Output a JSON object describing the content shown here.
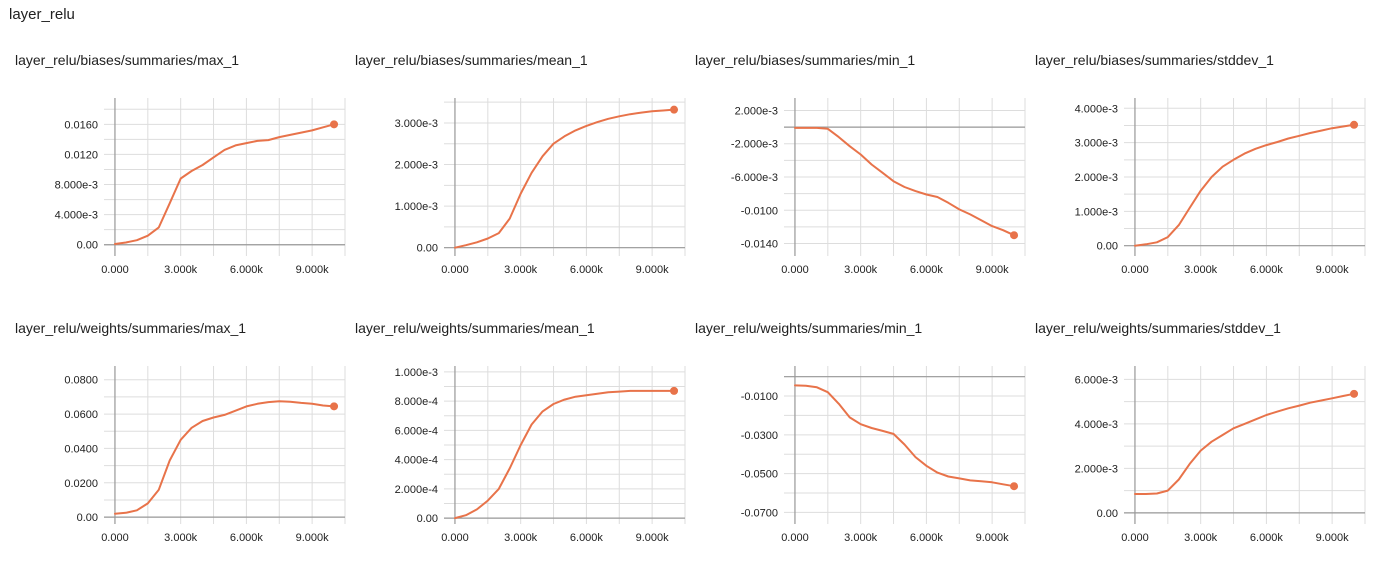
{
  "group": {
    "title": "layer_relu"
  },
  "colors": {
    "line": "#e8734a",
    "grid": "#dddddd",
    "axis": "#999999"
  },
  "chart_data": [
    {
      "type": "line",
      "title": "layer_relu/biases/summaries/max_1",
      "xlim": [
        -500,
        10500
      ],
      "ylim": [
        -0.0015,
        0.0195
      ],
      "xticks": [
        0,
        3000,
        6000,
        9000
      ],
      "xtick_labels": [
        "0.000",
        "3.000k",
        "6.000k",
        "9.000k"
      ],
      "yticks": [
        0,
        0.004,
        0.008,
        0.012,
        0.016
      ],
      "ytick_labels": [
        "0.00",
        "4.000e-3",
        "8.000e-3",
        "0.0120",
        "0.0160"
      ],
      "series": [
        {
          "x": [
            0,
            500,
            1000,
            1500,
            2000,
            2500,
            3000,
            3500,
            4000,
            4500,
            5000,
            5500,
            6000,
            6500,
            7000,
            7500,
            8000,
            8500,
            9000,
            9500,
            10000
          ],
          "y": [
            0.0001,
            0.0003,
            0.0006,
            0.0012,
            0.0023,
            0.0055,
            0.0088,
            0.0098,
            0.0106,
            0.0116,
            0.0126,
            0.0132,
            0.0135,
            0.0138,
            0.0139,
            0.0143,
            0.0146,
            0.0149,
            0.0152,
            0.0156,
            0.016
          ]
        }
      ]
    },
    {
      "type": "line",
      "title": "layer_relu/biases/summaries/mean_1",
      "xlim": [
        -500,
        10500
      ],
      "ylim": [
        -0.0002,
        0.0036
      ],
      "xticks": [
        0,
        3000,
        6000,
        9000
      ],
      "xtick_labels": [
        "0.000",
        "3.000k",
        "6.000k",
        "9.000k"
      ],
      "yticks": [
        0,
        0.001,
        0.002,
        0.003
      ],
      "ytick_labels": [
        "0.00",
        "1.000e-3",
        "2.000e-3",
        "3.000e-3"
      ],
      "series": [
        {
          "x": [
            0,
            500,
            1000,
            1500,
            2000,
            2500,
            3000,
            3500,
            4000,
            4500,
            5000,
            5500,
            6000,
            6500,
            7000,
            7500,
            8000,
            8500,
            9000,
            9500,
            10000
          ],
          "y": [
            0.0,
            6e-05,
            0.00013,
            0.00022,
            0.00035,
            0.0007,
            0.0013,
            0.0018,
            0.0022,
            0.0025,
            0.00268,
            0.00282,
            0.00293,
            0.00302,
            0.0031,
            0.00316,
            0.00321,
            0.00325,
            0.00328,
            0.0033,
            0.00332
          ]
        }
      ]
    },
    {
      "type": "line",
      "title": "layer_relu/biases/summaries/min_1",
      "xlim": [
        -500,
        10500
      ],
      "ylim": [
        -0.0155,
        0.0035
      ],
      "xticks": [
        0,
        3000,
        6000,
        9000
      ],
      "xtick_labels": [
        "0.000",
        "3.000k",
        "6.000k",
        "9.000k"
      ],
      "yticks": [
        -0.014,
        -0.01,
        -0.006,
        -0.002,
        0.002
      ],
      "ytick_labels": [
        "-0.0140",
        "-0.0100",
        "-6.000e-3",
        "-2.000e-3",
        "2.000e-3"
      ],
      "series": [
        {
          "x": [
            0,
            500,
            1000,
            1500,
            2000,
            2500,
            3000,
            3500,
            4000,
            4500,
            5000,
            5500,
            6000,
            6500,
            7000,
            7500,
            8000,
            8500,
            9000,
            9500,
            10000
          ],
          "y": [
            -0.0001,
            -0.0001,
            -0.0001,
            -0.0002,
            -0.0012,
            -0.0023,
            -0.0033,
            -0.0045,
            -0.0055,
            -0.0065,
            -0.0072,
            -0.0077,
            -0.0081,
            -0.0084,
            -0.0091,
            -0.0099,
            -0.0105,
            -0.0112,
            -0.0119,
            -0.0124,
            -0.013
          ]
        }
      ]
    },
    {
      "type": "line",
      "title": "layer_relu/biases/summaries/stddev_1",
      "xlim": [
        -500,
        10500
      ],
      "ylim": [
        -0.0003,
        0.0043
      ],
      "xticks": [
        0,
        3000,
        6000,
        9000
      ],
      "xtick_labels": [
        "0.000",
        "3.000k",
        "6.000k",
        "9.000k"
      ],
      "yticks": [
        0,
        0.001,
        0.002,
        0.003,
        0.004
      ],
      "ytick_labels": [
        "0.00",
        "1.000e-3",
        "2.000e-3",
        "3.000e-3",
        "4.000e-3"
      ],
      "series": [
        {
          "x": [
            0,
            500,
            1000,
            1500,
            2000,
            2500,
            3000,
            3500,
            4000,
            4500,
            5000,
            5500,
            6000,
            6500,
            7000,
            7500,
            8000,
            8500,
            9000,
            9500,
            10000
          ],
          "y": [
            0.0,
            4e-05,
            0.0001,
            0.00025,
            0.0006,
            0.0011,
            0.0016,
            0.002,
            0.0023,
            0.0025,
            0.00268,
            0.00282,
            0.00293,
            0.00302,
            0.00312,
            0.0032,
            0.00328,
            0.00335,
            0.00342,
            0.00347,
            0.00352
          ]
        }
      ]
    },
    {
      "type": "line",
      "title": "layer_relu/weights/summaries/max_1",
      "xlim": [
        -500,
        10500
      ],
      "ylim": [
        -0.004,
        0.088
      ],
      "xticks": [
        0,
        3000,
        6000,
        9000
      ],
      "xtick_labels": [
        "0.000",
        "3.000k",
        "6.000k",
        "9.000k"
      ],
      "yticks": [
        0,
        0.02,
        0.04,
        0.06,
        0.08
      ],
      "ytick_labels": [
        "0.00",
        "0.0200",
        "0.0400",
        "0.0600",
        "0.0800"
      ],
      "series": [
        {
          "x": [
            0,
            500,
            1000,
            1500,
            2000,
            2500,
            3000,
            3500,
            4000,
            4500,
            5000,
            5500,
            6000,
            6500,
            7000,
            7500,
            8000,
            8500,
            9000,
            9500,
            10000
          ],
          "y": [
            0.002,
            0.0025,
            0.004,
            0.008,
            0.016,
            0.033,
            0.045,
            0.052,
            0.056,
            0.058,
            0.0595,
            0.062,
            0.0645,
            0.066,
            0.067,
            0.0675,
            0.0672,
            0.0665,
            0.066,
            0.065,
            0.0645
          ]
        }
      ]
    },
    {
      "type": "line",
      "title": "layer_relu/weights/summaries/mean_1",
      "xlim": [
        -500,
        10500
      ],
      "ylim": [
        -4e-05,
        0.00104
      ],
      "xticks": [
        0,
        3000,
        6000,
        9000
      ],
      "xtick_labels": [
        "0.000",
        "3.000k",
        "6.000k",
        "9.000k"
      ],
      "yticks": [
        0,
        0.0002,
        0.0004,
        0.0006,
        0.0008,
        0.001
      ],
      "ytick_labels": [
        "0.00",
        "2.000e-4",
        "4.000e-4",
        "6.000e-4",
        "8.000e-4",
        "1.000e-3"
      ],
      "series": [
        {
          "x": [
            0,
            500,
            1000,
            1500,
            2000,
            2500,
            3000,
            3500,
            4000,
            4500,
            5000,
            5500,
            6000,
            6500,
            7000,
            7500,
            8000,
            8500,
            9000,
            9500,
            10000
          ],
          "y": [
            0.0,
            2e-05,
            6e-05,
            0.00012,
            0.0002,
            0.00034,
            0.0005,
            0.00064,
            0.00073,
            0.00078,
            0.00081,
            0.00083,
            0.00084,
            0.00085,
            0.00086,
            0.000865,
            0.00087,
            0.00087,
            0.00087,
            0.00087,
            0.00087
          ]
        }
      ]
    },
    {
      "type": "line",
      "title": "layer_relu/weights/summaries/min_1",
      "xlim": [
        -500,
        10500
      ],
      "ylim": [
        -0.076,
        0.0055
      ],
      "xticks": [
        0,
        3000,
        6000,
        9000
      ],
      "xtick_labels": [
        "0.000",
        "3.000k",
        "6.000k",
        "9.000k"
      ],
      "yticks": [
        -0.07,
        -0.05,
        -0.03,
        -0.01
      ],
      "ytick_labels": [
        "-0.0700",
        "-0.0500",
        "-0.0300",
        "-0.0100"
      ],
      "series": [
        {
          "x": [
            0,
            500,
            1000,
            1500,
            2000,
            2500,
            3000,
            3500,
            4000,
            4500,
            5000,
            5500,
            6000,
            6500,
            7000,
            7500,
            8000,
            8500,
            9000,
            9500,
            10000
          ],
          "y": [
            -0.0045,
            -0.0047,
            -0.0055,
            -0.008,
            -0.014,
            -0.021,
            -0.0245,
            -0.0265,
            -0.028,
            -0.0295,
            -0.035,
            -0.0415,
            -0.046,
            -0.0495,
            -0.0515,
            -0.0525,
            -0.0535,
            -0.054,
            -0.0545,
            -0.0555,
            -0.0565
          ]
        }
      ]
    },
    {
      "type": "line",
      "title": "layer_relu/weights/summaries/stddev_1",
      "xlim": [
        -500,
        10500
      ],
      "ylim": [
        -0.0005,
        0.0066
      ],
      "xticks": [
        0,
        3000,
        6000,
        9000
      ],
      "xtick_labels": [
        "0.000",
        "3.000k",
        "6.000k",
        "9.000k"
      ],
      "yticks": [
        0,
        0.002,
        0.004,
        0.006
      ],
      "ytick_labels": [
        "0.00",
        "2.000e-3",
        "4.000e-3",
        "6.000e-3"
      ],
      "series": [
        {
          "x": [
            0,
            500,
            1000,
            1500,
            2000,
            2500,
            3000,
            3500,
            4000,
            4500,
            5000,
            5500,
            6000,
            6500,
            7000,
            7500,
            8000,
            8500,
            9000,
            9500,
            10000
          ],
          "y": [
            0.00085,
            0.00085,
            0.00087,
            0.001,
            0.0015,
            0.0022,
            0.0028,
            0.0032,
            0.0035,
            0.0038,
            0.004,
            0.0042,
            0.0044,
            0.00455,
            0.0047,
            0.00482,
            0.00495,
            0.00505,
            0.00515,
            0.00525,
            0.00535
          ]
        }
      ]
    }
  ]
}
